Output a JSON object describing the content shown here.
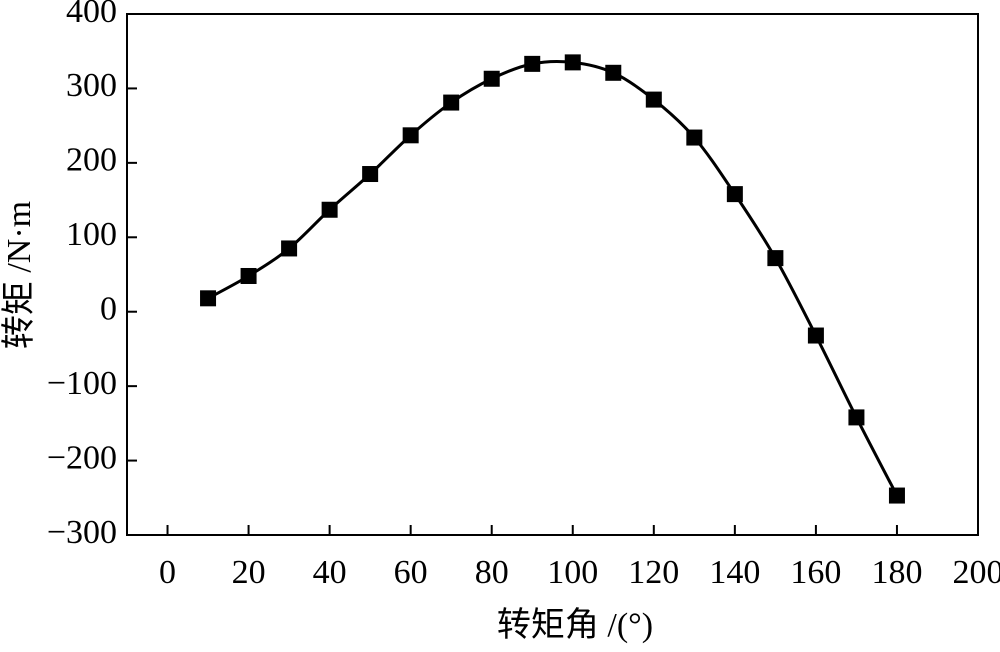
{
  "chart_data": {
    "type": "line",
    "x_label": "转矩角 /(°)",
    "y_label": "转矩 /N·m",
    "x": [
      10,
      20,
      30,
      40,
      50,
      60,
      70,
      80,
      90,
      100,
      110,
      120,
      130,
      140,
      150,
      160,
      170,
      180
    ],
    "series": [
      {
        "color": "#000000",
        "values": [
          18,
          48,
          85,
          137,
          185,
          237,
          281,
          313,
          333,
          335,
          321,
          285,
          234,
          158,
          72,
          -32,
          -142,
          -247
        ]
      }
    ],
    "xlim": [
      -10,
      200
    ],
    "xticks": [
      0,
      20,
      40,
      60,
      80,
      100,
      120,
      140,
      160,
      180,
      200
    ],
    "ylim": [
      -300,
      400
    ],
    "yticks": [
      {
        "value": -300,
        "label": "−300"
      },
      {
        "value": -200,
        "label": "−200"
      },
      {
        "value": -100,
        "label": "−100"
      },
      0,
      100,
      200,
      300,
      400
    ],
    "smooth": true,
    "marker": "square"
  }
}
